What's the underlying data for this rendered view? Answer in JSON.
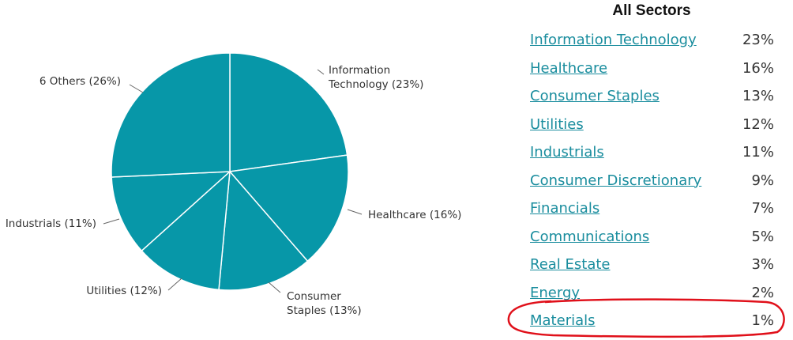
{
  "chart_data": {
    "type": "pie",
    "title": "",
    "color": "#0797a8",
    "slices": [
      {
        "label": "Information Technology",
        "display": [
          "Information",
          "Technology (23%)"
        ],
        "value": 23
      },
      {
        "label": "Healthcare",
        "display": [
          "Healthcare (16%)"
        ],
        "value": 16
      },
      {
        "label": "Consumer Staples",
        "display": [
          "Consumer",
          "Staples (13%)"
        ],
        "value": 13
      },
      {
        "label": "Utilities",
        "display": [
          "Utilities (12%)"
        ],
        "value": 12
      },
      {
        "label": "Industrials",
        "display": [
          "Industrials (11%)"
        ],
        "value": 11
      },
      {
        "label": "6 Others",
        "display": [
          "6 Others (26%)"
        ],
        "value": 26
      }
    ]
  },
  "panel": {
    "title": "All Sectors",
    "link_color": "#1a8d9e",
    "highlight_color": "#e0101a",
    "highlighted_sector": "Materials",
    "sectors": [
      {
        "name": "Information Technology",
        "pct": "23%"
      },
      {
        "name": "Healthcare",
        "pct": "16%"
      },
      {
        "name": "Consumer Staples",
        "pct": "13%"
      },
      {
        "name": "Utilities",
        "pct": "12%"
      },
      {
        "name": "Industrials",
        "pct": "11%"
      },
      {
        "name": "Consumer Discretionary",
        "pct": "9%"
      },
      {
        "name": "Financials",
        "pct": "7%"
      },
      {
        "name": "Communications",
        "pct": "5%"
      },
      {
        "name": "Real Estate",
        "pct": "3%"
      },
      {
        "name": "Energy",
        "pct": "2%"
      },
      {
        "name": "Materials",
        "pct": "1%"
      }
    ]
  }
}
